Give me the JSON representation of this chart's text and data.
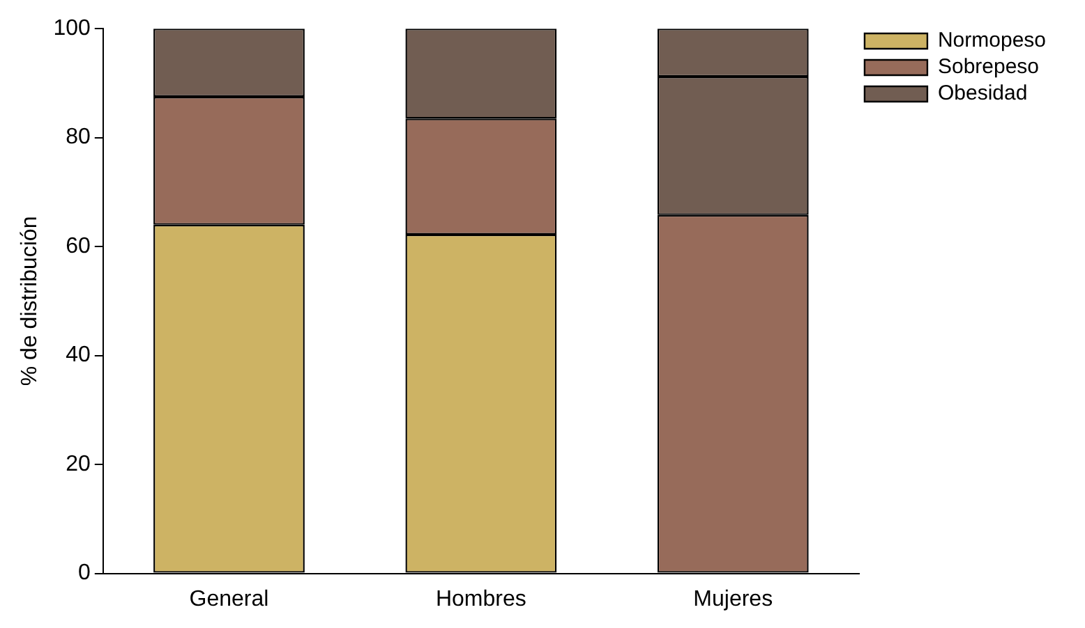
{
  "chart_data": {
    "type": "bar",
    "stacked": true,
    "ylabel": "% de distribución",
    "categories": [
      "General",
      "Hombres",
      "Mujeres"
    ],
    "series": [
      {
        "name": "Normopeso",
        "color": "#cdb364",
        "values": [
          64,
          62.2,
          null
        ]
      },
      {
        "name": "Sobrepeso",
        "color": "#976b5a",
        "values": [
          23.5,
          21.3,
          65.8
        ]
      },
      {
        "name": "Obesidad",
        "color": "#715d52",
        "values": [
          12.5,
          16.5,
          25.4
        ]
      },
      {
        "color": "#715d52",
        "values": [
          null,
          null,
          8.8
        ]
      }
    ],
    "ylim": [
      0,
      100
    ],
    "yticks": [
      0,
      20,
      40,
      60,
      80,
      100
    ],
    "grid": false,
    "legend": "top right"
  }
}
